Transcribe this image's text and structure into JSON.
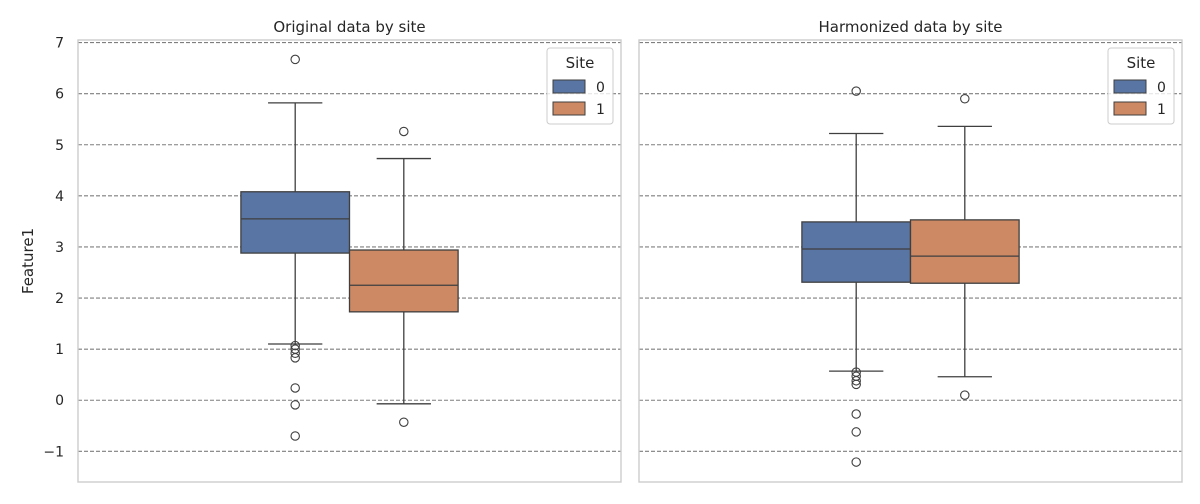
{
  "chart_data": [
    {
      "type": "box",
      "title": "Original data by site",
      "ylabel": "Feature1",
      "xlabel": "",
      "ylim": [
        -1.6,
        7.05
      ],
      "yticks": [
        -1,
        0,
        1,
        2,
        3,
        4,
        5,
        6,
        7
      ],
      "ytick_labels": [
        "−1",
        "0",
        "1",
        "2",
        "3",
        "4",
        "5",
        "6",
        "7"
      ],
      "grid": "horizontal dashed",
      "legend": {
        "title": "Site",
        "placement": "top-right",
        "entries": [
          "0",
          "1"
        ]
      },
      "series": [
        {
          "name": "0",
          "color": "#5975a4",
          "q1": 2.88,
          "median": 3.55,
          "q3": 4.08,
          "whisker_low": 1.1,
          "whisker_high": 5.82,
          "outliers": [
            6.67,
            1.07,
            1.0,
            0.92,
            0.83,
            0.24,
            -0.09,
            -0.7
          ]
        },
        {
          "name": "1",
          "color": "#cc8963",
          "q1": 1.73,
          "median": 2.25,
          "q3": 2.94,
          "whisker_low": -0.07,
          "whisker_high": 4.73,
          "outliers": [
            5.26,
            -0.43
          ]
        }
      ]
    },
    {
      "type": "box",
      "title": "Harmonized data by site",
      "ylabel": "",
      "xlabel": "",
      "ylim": [
        -1.6,
        7.05
      ],
      "yticks": [
        -1,
        0,
        1,
        2,
        3,
        4,
        5,
        6,
        7
      ],
      "grid": "horizontal dashed",
      "legend": {
        "title": "Site",
        "placement": "top-right",
        "entries": [
          "0",
          "1"
        ]
      },
      "series": [
        {
          "name": "0",
          "color": "#5975a4",
          "q1": 2.31,
          "median": 2.96,
          "q3": 3.49,
          "whisker_low": 0.57,
          "whisker_high": 5.22,
          "outliers": [
            6.05,
            0.55,
            0.47,
            0.38,
            0.31,
            -0.27,
            -0.62,
            -1.21
          ]
        },
        {
          "name": "1",
          "color": "#cc8963",
          "q1": 2.29,
          "median": 2.82,
          "q3": 3.53,
          "whisker_low": 0.46,
          "whisker_high": 5.36,
          "outliers": [
            5.9,
            0.1
          ]
        }
      ]
    }
  ]
}
